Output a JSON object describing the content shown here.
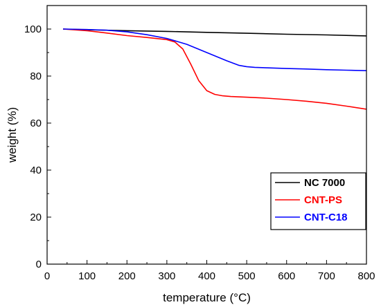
{
  "chart_data": {
    "type": "line",
    "title": "",
    "xlabel": "temperature (°C)",
    "ylabel": "weight (%)",
    "xlim": [
      0,
      800
    ],
    "ylim": [
      0,
      110
    ],
    "xticks": [
      0,
      100,
      200,
      300,
      400,
      500,
      600,
      700,
      800
    ],
    "yticks": [
      0,
      20,
      40,
      60,
      80,
      100
    ],
    "grid": false,
    "legend_position": "bottom-right",
    "series": [
      {
        "name": "NC 7000",
        "color": "#000000",
        "x": [
          40,
          100,
          200,
          300,
          400,
          500,
          600,
          700,
          800
        ],
        "y": [
          100,
          99.7,
          99.3,
          99.0,
          98.6,
          98.2,
          97.8,
          97.5,
          97.1
        ]
      },
      {
        "name": "CNT-PS",
        "color": "#ff0000",
        "x": [
          40,
          100,
          150,
          200,
          250,
          300,
          320,
          340,
          360,
          380,
          400,
          420,
          440,
          460,
          500,
          550,
          600,
          650,
          700,
          750,
          800
        ],
        "y": [
          100,
          99.3,
          98.3,
          97.2,
          96.4,
          95.5,
          94.5,
          91.5,
          85.0,
          78.0,
          73.8,
          72.2,
          71.6,
          71.3,
          71.0,
          70.6,
          70.0,
          69.3,
          68.4,
          67.2,
          65.9
        ]
      },
      {
        "name": "CNT-C18",
        "color": "#0000ff",
        "x": [
          40,
          100,
          150,
          200,
          250,
          300,
          350,
          400,
          450,
          480,
          500,
          520,
          550,
          600,
          650,
          700,
          750,
          800
        ],
        "y": [
          100,
          99.8,
          99.5,
          98.8,
          97.6,
          96.0,
          93.5,
          90.0,
          86.5,
          84.6,
          84.0,
          83.7,
          83.5,
          83.2,
          83.0,
          82.7,
          82.5,
          82.3
        ]
      }
    ]
  }
}
